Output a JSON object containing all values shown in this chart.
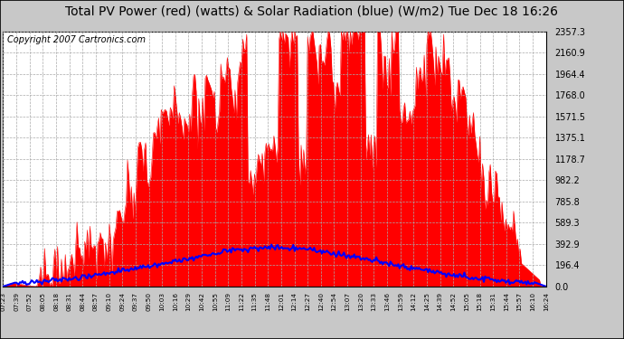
{
  "title": "Total PV Power (red) (watts) & Solar Radiation (blue) (W/m2) Tue Dec 18 16:26",
  "copyright": "Copyright 2007 Cartronics.com",
  "bg_color": "#c8c8c8",
  "plot_bg_color": "#ffffff",
  "title_bg_color": "#ffffff",
  "yticks": [
    0.0,
    196.4,
    392.9,
    589.3,
    785.8,
    982.2,
    1178.7,
    1375.1,
    1571.5,
    1768.0,
    1964.4,
    2160.9,
    2357.3
  ],
  "xtick_labels": [
    "07:23",
    "07:39",
    "07:52",
    "08:05",
    "08:18",
    "08:31",
    "08:44",
    "08:57",
    "09:10",
    "09:24",
    "09:37",
    "09:50",
    "10:03",
    "10:16",
    "10:29",
    "10:42",
    "10:55",
    "11:09",
    "11:22",
    "11:35",
    "11:48",
    "12:01",
    "12:14",
    "12:27",
    "12:40",
    "12:54",
    "13:07",
    "13:20",
    "13:33",
    "13:46",
    "13:59",
    "14:12",
    "14:25",
    "14:39",
    "14:52",
    "15:05",
    "15:18",
    "15:31",
    "15:44",
    "15:57",
    "16:10",
    "16:24"
  ],
  "red_fill_color": "#ff0000",
  "blue_line_color": "#0000ff",
  "grid_color": "#aaaaaa",
  "ymax": 2357.3,
  "title_fontsize": 10,
  "copyright_fontsize": 7
}
